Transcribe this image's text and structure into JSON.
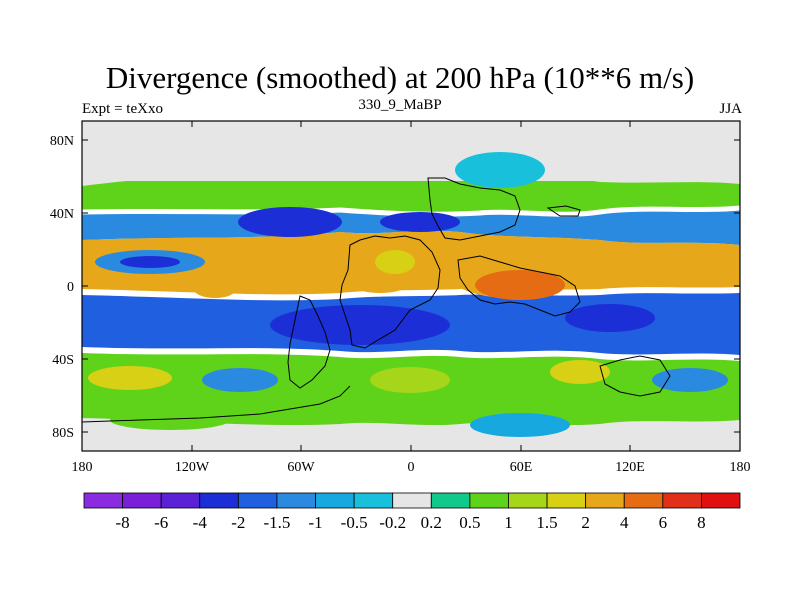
{
  "header": {
    "title": "Divergence (smoothed) at 200 hPa (10**6 m/s)",
    "left_label": "Expt = teXxo",
    "center_label": "330_9_MaBP",
    "right_label": "JJA"
  },
  "axes": {
    "lat_ticks": [
      "80N",
      "40N",
      "0",
      "40S",
      "80S"
    ],
    "lon_ticks": [
      "180",
      "120W",
      "60W",
      "0",
      "60E",
      "120E",
      "180"
    ]
  },
  "colorbar": {
    "labels": [
      "-8",
      "-6",
      "-4",
      "-2",
      "-1.5",
      "-1",
      "-0.5",
      "-0.2",
      "0.2",
      "0.5",
      "1",
      "1.5",
      "2",
      "4",
      "6",
      "8"
    ],
    "colors": [
      "#8a2be2",
      "#7a1fd8",
      "#5b21d6",
      "#1c2fd6",
      "#1f5fe0",
      "#2a8ae0",
      "#18a8e0",
      "#19c0dc",
      "#e6e6e6",
      "#11c98a",
      "#5fd31a",
      "#a6d619",
      "#d8d014",
      "#e6a81a",
      "#e66c14",
      "#e0301a",
      "#e01010"
    ]
  },
  "map": {
    "background_color": "#e6e6e6"
  }
}
